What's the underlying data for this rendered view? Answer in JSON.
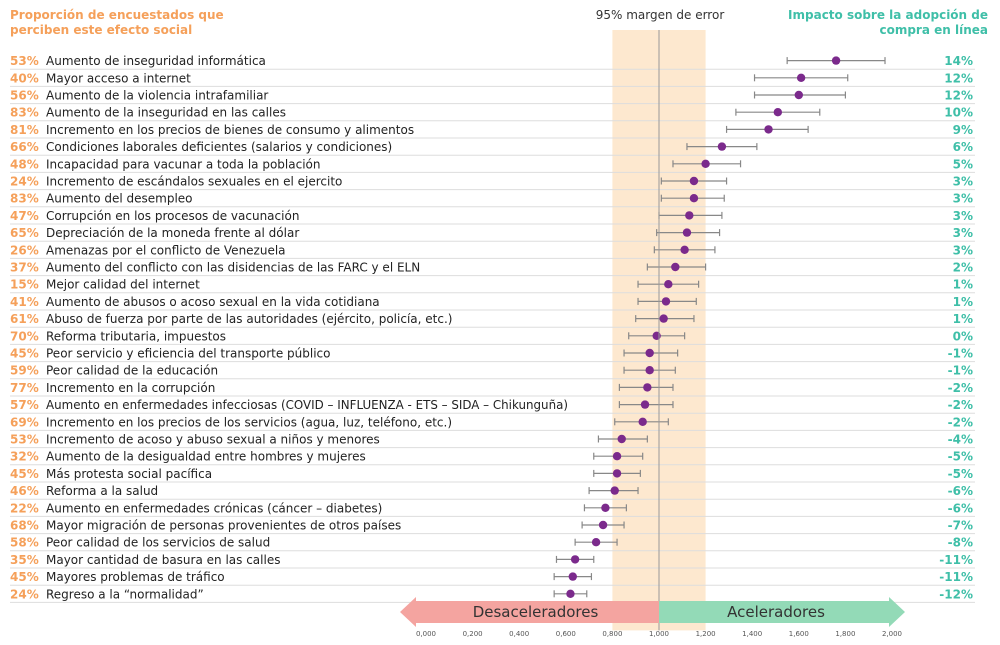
{
  "header": {
    "left_title": "Proporción de encuestados que perciben este efecto social",
    "right_title": "Impacto sobre la adopción de compra en línea",
    "ci_label": "95% margen de error"
  },
  "colors": {
    "pct": "#f5a05a",
    "impact": "#3fbfa8",
    "dot": "#7b2a8c",
    "ci_band": "#fde8cf",
    "row_line": "#dddddd",
    "decel": "#f4a4a0",
    "accel": "#93dab7"
  },
  "chart_data": {
    "type": "scatter",
    "xlim": [
      0,
      2
    ],
    "x_ticks": [
      "0,000",
      "0,200",
      "0,400",
      "0,600",
      "0,800",
      "1,000",
      "1,200",
      "1,400",
      "1,600",
      "1,800",
      "2,000"
    ],
    "ci_band": [
      0.8,
      1.2
    ],
    "reference_x": 1.0,
    "arrow_labels": {
      "left": "Desaceleradores",
      "right": "Aceleradores"
    },
    "rows": [
      {
        "pct": "53%",
        "label": "Aumento de inseguridad informática",
        "x": 1.76,
        "lo": 1.55,
        "hi": 1.97,
        "impact": "14%"
      },
      {
        "pct": "40%",
        "label": "Mayor acceso a internet",
        "x": 1.61,
        "lo": 1.41,
        "hi": 1.81,
        "impact": "12%"
      },
      {
        "pct": "56%",
        "label": "Aumento de la violencia intrafamiliar",
        "x": 1.6,
        "lo": 1.41,
        "hi": 1.8,
        "impact": "12%"
      },
      {
        "pct": "83%",
        "label": "Aumento de la inseguridad en las calles",
        "x": 1.51,
        "lo": 1.33,
        "hi": 1.69,
        "impact": "10%"
      },
      {
        "pct": "81%",
        "label": "Incremento en los precios de bienes de consumo y alimentos",
        "x": 1.47,
        "lo": 1.29,
        "hi": 1.64,
        "impact": "9%"
      },
      {
        "pct": "66%",
        "label": "Condiciones laborales deficientes (salarios y condiciones)",
        "x": 1.27,
        "lo": 1.12,
        "hi": 1.42,
        "impact": "6%"
      },
      {
        "pct": "48%",
        "label": "Incapacidad para vacunar a toda la población",
        "x": 1.2,
        "lo": 1.06,
        "hi": 1.35,
        "impact": "5%"
      },
      {
        "pct": "24%",
        "label": "Incremento de escándalos sexuales en el ejercito",
        "x": 1.15,
        "lo": 1.01,
        "hi": 1.29,
        "impact": "3%"
      },
      {
        "pct": "83%",
        "label": "Aumento del desempleo",
        "x": 1.15,
        "lo": 1.01,
        "hi": 1.28,
        "impact": "3%"
      },
      {
        "pct": "47%",
        "label": "Corrupción en los procesos de vacunación",
        "x": 1.13,
        "lo": 1.0,
        "hi": 1.27,
        "impact": "3%"
      },
      {
        "pct": "65%",
        "label": "Depreciación de la moneda frente al dólar",
        "x": 1.12,
        "lo": 0.99,
        "hi": 1.26,
        "impact": "3%"
      },
      {
        "pct": "26%",
        "label": "Amenazas por el conflicto de Venezuela",
        "x": 1.11,
        "lo": 0.98,
        "hi": 1.24,
        "impact": "3%"
      },
      {
        "pct": "37%",
        "label": "Aumento del conflicto con las disidencias de las FARC y el ELN",
        "x": 1.07,
        "lo": 0.95,
        "hi": 1.2,
        "impact": "2%"
      },
      {
        "pct": "15%",
        "label": "Mejor calidad del internet",
        "x": 1.04,
        "lo": 0.91,
        "hi": 1.17,
        "impact": "1%"
      },
      {
        "pct": "41%",
        "label": "Aumento de abusos o acoso sexual en la vida cotidiana",
        "x": 1.03,
        "lo": 0.91,
        "hi": 1.16,
        "impact": "1%"
      },
      {
        "pct": "61%",
        "label": "Abuso de fuerza por parte de las autoridades (ejército, policía, etc.)",
        "x": 1.02,
        "lo": 0.9,
        "hi": 1.15,
        "impact": "1%"
      },
      {
        "pct": "70%",
        "label": "Reforma tributaria, impuestos",
        "x": 0.99,
        "lo": 0.87,
        "hi": 1.11,
        "impact": "0%"
      },
      {
        "pct": "45%",
        "label": "Peor servicio y eficiencia del transporte público",
        "x": 0.96,
        "lo": 0.85,
        "hi": 1.08,
        "impact": "-1%"
      },
      {
        "pct": "59%",
        "label": "Peor calidad de la educación",
        "x": 0.96,
        "lo": 0.85,
        "hi": 1.07,
        "impact": "-1%"
      },
      {
        "pct": "77%",
        "label": "Incremento en la corrupción",
        "x": 0.95,
        "lo": 0.83,
        "hi": 1.06,
        "impact": "-2%"
      },
      {
        "pct": "57%",
        "label": "Aumento en enfermedades infecciosas (COVID – INFLUENZA - ETS – SIDA – Chikunguña)",
        "x": 0.94,
        "lo": 0.83,
        "hi": 1.06,
        "impact": "-2%"
      },
      {
        "pct": "69%",
        "label": "Incremento en los precios de los servicios (agua, luz, teléfono, etc.)",
        "x": 0.93,
        "lo": 0.81,
        "hi": 1.04,
        "impact": "-2%"
      },
      {
        "pct": "53%",
        "label": "Incremento de acoso y abuso sexual a niños y menores",
        "x": 0.84,
        "lo": 0.74,
        "hi": 0.95,
        "impact": "-4%"
      },
      {
        "pct": "32%",
        "label": "Aumento de la desigualdad entre hombres y mujeres",
        "x": 0.82,
        "lo": 0.72,
        "hi": 0.93,
        "impact": "-5%"
      },
      {
        "pct": "45%",
        "label": "Más protesta social pacífica",
        "x": 0.82,
        "lo": 0.72,
        "hi": 0.92,
        "impact": "-5%"
      },
      {
        "pct": "46%",
        "label": "Reforma a la salud",
        "x": 0.81,
        "lo": 0.7,
        "hi": 0.91,
        "impact": "-6%"
      },
      {
        "pct": "22%",
        "label": "Aumento en enfermedades crónicas (cáncer – diabetes)",
        "x": 0.77,
        "lo": 0.68,
        "hi": 0.86,
        "impact": "-6%"
      },
      {
        "pct": "68%",
        "label": "Mayor migración de personas provenientes de otros países",
        "x": 0.76,
        "lo": 0.67,
        "hi": 0.85,
        "impact": "-7%"
      },
      {
        "pct": "58%",
        "label": "Peor calidad de los servicios de salud",
        "x": 0.73,
        "lo": 0.64,
        "hi": 0.82,
        "impact": "-8%"
      },
      {
        "pct": "35%",
        "label": "Mayor cantidad de basura en las calles",
        "x": 0.64,
        "lo": 0.56,
        "hi": 0.72,
        "impact": "-11%"
      },
      {
        "pct": "45%",
        "label": "Mayores problemas de tráfico",
        "x": 0.63,
        "lo": 0.55,
        "hi": 0.71,
        "impact": "-11%"
      },
      {
        "pct": "24%",
        "label": "Regreso a la “normalidad”",
        "x": 0.62,
        "lo": 0.55,
        "hi": 0.69,
        "impact": "-12%"
      }
    ]
  }
}
